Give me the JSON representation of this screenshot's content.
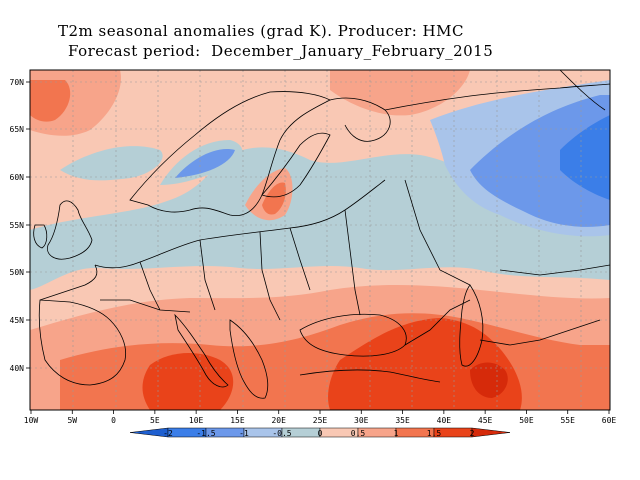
{
  "title": {
    "line1": "T2m seasonal anomalies (grad K). Producer: HMC",
    "line2": "Forecast period:  December_January_February_2015"
  },
  "map": {
    "lon_labels": [
      "10W",
      "5W",
      "0",
      "5E",
      "10E",
      "15E",
      "20E",
      "25E",
      "30E",
      "35E",
      "40E",
      "45E",
      "50E",
      "55E",
      "60E"
    ],
    "lat_labels": [
      "70N",
      "65N",
      "60N",
      "55N",
      "50N",
      "45N",
      "40N"
    ]
  },
  "colorbar": {
    "labels": [
      "-2",
      "-1.5",
      "-1",
      "-0.5",
      "0",
      "0.5",
      "1",
      "1.5",
      "2"
    ],
    "colors": [
      "#1e5fd0",
      "#3b7ee8",
      "#6c98ea",
      "#a9c4ea",
      "#b5cfd6",
      "#f9c8b4",
      "#f7a48a",
      "#f2754f",
      "#e9431a",
      "#d62a0a"
    ]
  }
}
